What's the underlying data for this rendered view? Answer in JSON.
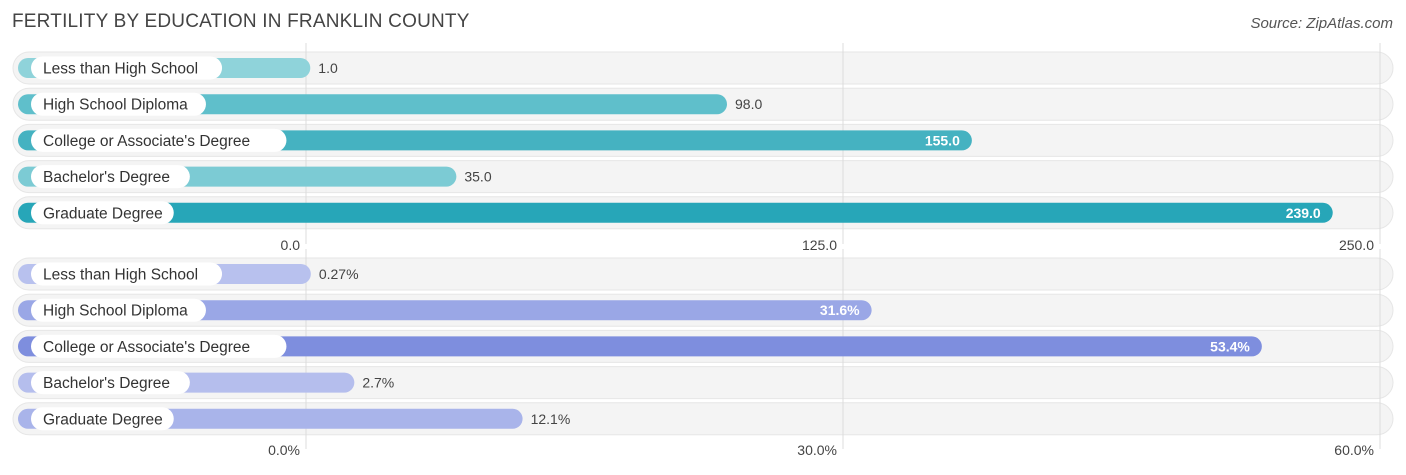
{
  "header": {
    "title": "FERTILITY BY EDUCATION IN FRANKLIN COUNTY",
    "source": "Source: ZipAtlas.com"
  },
  "chart_data": [
    {
      "type": "bar",
      "orientation": "horizontal",
      "categories": [
        "Less than High School",
        "High School Diploma",
        "College or Associate's Degree",
        "Bachelor's Degree",
        "Graduate Degree"
      ],
      "values": [
        1.0,
        98.0,
        155.0,
        35.0,
        239.0
      ],
      "value_labels": [
        "1.0",
        "98.0",
        "155.0",
        "35.0",
        "239.0"
      ],
      "xlim": [
        0,
        250
      ],
      "ticks": [
        "0.0",
        "125.0",
        "250.0"
      ],
      "tick_values": [
        0,
        125,
        250
      ],
      "colors": [
        "#8fd3da",
        "#5fbfcb",
        "#45b2c1",
        "#7ccbd4",
        "#27a6b8"
      ],
      "grid": true
    },
    {
      "type": "bar",
      "orientation": "horizontal",
      "categories": [
        "Less than High School",
        "High School Diploma",
        "College or Associate's Degree",
        "Bachelor's Degree",
        "Graduate Degree"
      ],
      "values": [
        0.27,
        31.6,
        53.4,
        2.7,
        12.1
      ],
      "value_labels": [
        "0.27%",
        "31.6%",
        "53.4%",
        "2.7%",
        "12.1%"
      ],
      "xlim": [
        0,
        60
      ],
      "ticks": [
        "0.0%",
        "30.0%",
        "60.0%"
      ],
      "tick_values": [
        0,
        30,
        60
      ],
      "colors": [
        "#b8c1ee",
        "#9aa7e6",
        "#7e8ede",
        "#b5beed",
        "#a9b4ea"
      ],
      "grid": true
    }
  ]
}
